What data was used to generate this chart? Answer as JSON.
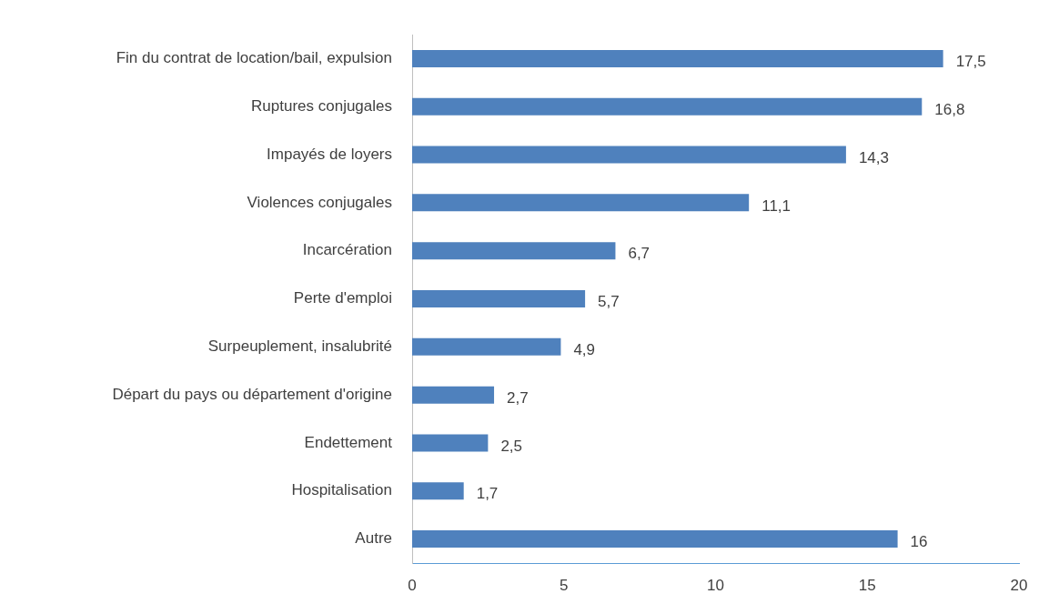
{
  "chart_data": {
    "type": "bar",
    "orientation": "horizontal",
    "categories": [
      "Fin du contrat de location/bail, expulsion",
      "Ruptures conjugales",
      "Impayés de loyers",
      "Violences conjugales",
      "Incarcération",
      "Perte d'emploi",
      "Surpeuplement, insalubrité",
      "Départ du pays ou département d'origine",
      "Endettement",
      "Hospitalisation",
      "Autre"
    ],
    "values": [
      17.5,
      16.8,
      14.3,
      11.1,
      6.7,
      5.7,
      4.9,
      2.7,
      2.5,
      1.7,
      16
    ],
    "value_labels": [
      "17,5",
      "16,8",
      "14,3",
      "11,1",
      "6,7",
      "5,7",
      "4,9",
      "2,7",
      "2,5",
      "1,7",
      "16"
    ],
    "color": "#4f81bd",
    "xlim": [
      0,
      20
    ],
    "xticks": [
      0,
      5,
      10,
      15,
      20
    ]
  }
}
